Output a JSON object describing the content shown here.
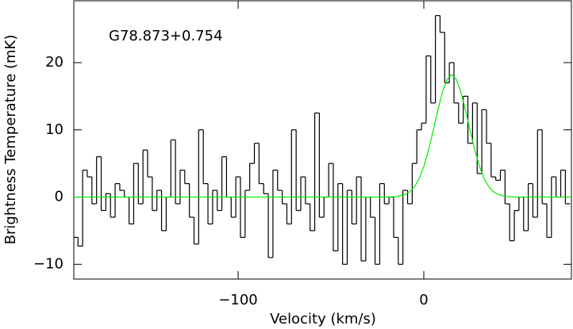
{
  "chart_data": {
    "type": "line",
    "annotation": "G78.873+0.754",
    "xlabel": "Velocity (km/s)",
    "ylabel": "Brightness Temperature (mK)",
    "xlim": [
      -188.5,
      79.5
    ],
    "ylim": [
      -12.2,
      29.2
    ],
    "xticks": [
      {
        "value": -100,
        "label": "−100"
      },
      0
    ],
    "yticks": [
      {
        "value": -10,
        "label": "−10"
      },
      0,
      10,
      20
    ],
    "series": [
      {
        "color": "#000000",
        "step": true,
        "x": [
          -187.5,
          -185,
          -182.5,
          -180,
          -177.5,
          -175,
          -172.5,
          -170,
          -167.5,
          -165,
          -162.5,
          -160,
          -157.5,
          -155,
          -152.5,
          -150,
          -147.5,
          -145,
          -142.5,
          -140,
          -137.5,
          -135,
          -132.5,
          -130,
          -127.5,
          -125,
          -122.5,
          -120,
          -117.5,
          -115,
          -112.5,
          -110,
          -107.5,
          -105,
          -102.5,
          -100,
          -97.5,
          -95,
          -92.5,
          -90,
          -87.5,
          -85,
          -82.5,
          -80,
          -77.5,
          -75,
          -72.5,
          -70,
          -67.5,
          -65,
          -62.5,
          -60,
          -57.5,
          -55,
          -52.5,
          -50,
          -47.5,
          -45,
          -42.5,
          -40,
          -37.5,
          -35,
          -32.5,
          -30,
          -27.5,
          -25,
          -22.5,
          -20,
          -17.5,
          -15,
          -12.5,
          -10,
          -7.5,
          -5,
          -2.5,
          0,
          2.5,
          5,
          7.5,
          10,
          12.5,
          15,
          17.5,
          20,
          22.5,
          25,
          27.5,
          30,
          32.5,
          35,
          37.5,
          40,
          42.5,
          45,
          47.5,
          50,
          52.5,
          55,
          57.5,
          60,
          62.5,
          65,
          67.5,
          70,
          72.5,
          75,
          77.5
        ],
        "values": [
          -6,
          -7.3,
          4,
          3,
          -1,
          6,
          -2,
          0.5,
          -3,
          2,
          1,
          0,
          -4,
          5,
          -1,
          7,
          3,
          -2,
          1,
          -5,
          0,
          8.5,
          -1,
          4,
          2,
          -3,
          -7,
          10,
          2,
          -4,
          1,
          -2,
          6,
          0,
          -3,
          3,
          -6,
          1,
          5,
          8,
          2,
          0.5,
          -9,
          4,
          1,
          -1,
          -4,
          10,
          -2,
          3,
          -1,
          -5,
          12.5,
          -3,
          0,
          5,
          -8,
          2,
          -10,
          1,
          -4,
          3,
          -9.5,
          0,
          -3,
          -10,
          2,
          -1,
          0,
          -6,
          -10,
          1,
          -1,
          5,
          10,
          11,
          21,
          14,
          27,
          24.5,
          17,
          20,
          14,
          11,
          15,
          8,
          14,
          3.5,
          13,
          8,
          3,
          2.5,
          4,
          -1,
          -6.5,
          -2,
          0,
          -5,
          2,
          -3,
          10,
          -1,
          -6,
          3,
          0,
          4,
          -1
        ]
      },
      {
        "color": "#00ee00",
        "x": [
          -188.5,
          -25,
          -20,
          -15,
          -10,
          -7.5,
          -5,
          -2.5,
          0,
          2.5,
          5,
          7.5,
          10,
          12.5,
          15,
          17.5,
          20,
          22.5,
          25,
          27.5,
          30,
          32.5,
          35,
          37.5,
          40,
          45,
          50,
          55,
          79.5
        ],
        "values": [
          0,
          0,
          0.01,
          0.07,
          0.38,
          0.8,
          1.54,
          2.75,
          4.54,
          6.94,
          9.82,
          12.86,
          15.6,
          17.51,
          18.2,
          17.51,
          15.6,
          12.86,
          9.82,
          6.94,
          4.54,
          2.75,
          1.54,
          0.8,
          0.38,
          0.07,
          0.01,
          0,
          0
        ]
      }
    ]
  }
}
